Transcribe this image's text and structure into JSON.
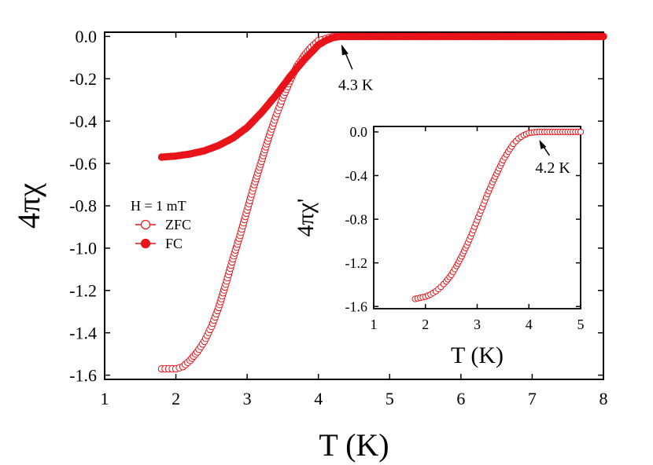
{
  "chart_data": [
    {
      "type": "scatter",
      "xlabel": "T (K)",
      "ylabel": "4πχ",
      "xlim": [
        1,
        8
      ],
      "ylim": [
        -1.62,
        0.02
      ],
      "xticks": [
        "1",
        "2",
        "3",
        "4",
        "5",
        "6",
        "7",
        "8"
      ],
      "yticks": [
        "0.0",
        "-0.2",
        "-0.4",
        "-0.6",
        "-0.8",
        "-1.0",
        "-1.2",
        "-1.4",
        "-1.6"
      ],
      "legend": {
        "placement": "middle-left",
        "title": "H = 1 mT"
      },
      "series": [
        {
          "name": "ZFC",
          "marker": "open-circle",
          "color": "#e8141a",
          "x": [
            1.8,
            1.9,
            2.0,
            2.1,
            2.2,
            2.3,
            2.4,
            2.5,
            2.6,
            2.7,
            2.8,
            2.9,
            3.0,
            3.1,
            3.2,
            3.3,
            3.4,
            3.5,
            3.6,
            3.7,
            3.8,
            3.9,
            4.0,
            4.1,
            4.2,
            4.3,
            4.4,
            4.6,
            5.0,
            5.5,
            6.0,
            6.5,
            7.0,
            7.5,
            8.0
          ],
          "y": [
            -1.57,
            -1.57,
            -1.57,
            -1.56,
            -1.53,
            -1.49,
            -1.44,
            -1.37,
            -1.28,
            -1.17,
            -1.05,
            -0.94,
            -0.82,
            -0.7,
            -0.59,
            -0.48,
            -0.38,
            -0.29,
            -0.21,
            -0.14,
            -0.09,
            -0.05,
            -0.02,
            -0.01,
            0.0,
            0.0,
            0.0,
            0.0,
            0.0,
            0.0,
            0.0,
            0.0,
            0.0,
            0.0,
            0.0
          ]
        },
        {
          "name": "FC",
          "marker": "filled-circle",
          "color": "#e8141a",
          "x": [
            1.8,
            2.0,
            2.2,
            2.4,
            2.6,
            2.8,
            3.0,
            3.2,
            3.4,
            3.6,
            3.8,
            4.0,
            4.1,
            4.2,
            4.3,
            4.4,
            4.6,
            5.0,
            5.5,
            6.0,
            6.5,
            7.0,
            7.5,
            8.0
          ],
          "y": [
            -0.57,
            -0.565,
            -0.555,
            -0.54,
            -0.515,
            -0.48,
            -0.43,
            -0.36,
            -0.28,
            -0.19,
            -0.11,
            -0.04,
            -0.02,
            -0.006,
            0.0,
            0.0,
            0.0,
            0.0,
            0.0,
            0.0,
            0.0,
            0.0,
            0.0,
            0.0
          ]
        }
      ],
      "annotations": [
        {
          "text": "4.3 K",
          "x": 4.3,
          "y": 0.0
        }
      ]
    },
    {
      "type": "scatter",
      "xlabel": "T (K)",
      "ylabel": "4πχ'",
      "xlim": [
        1,
        5
      ],
      "ylim": [
        -1.62,
        0.05
      ],
      "xticks": [
        "1",
        "2",
        "3",
        "4",
        "5"
      ],
      "yticks": [
        "0.0",
        "-0.4",
        "-0.8",
        "-1.2",
        "-1.6"
      ],
      "series": [
        {
          "name": "",
          "marker": "open-circle",
          "color": "#e8141a",
          "x": [
            1.8,
            1.9,
            2.0,
            2.1,
            2.2,
            2.3,
            2.4,
            2.5,
            2.6,
            2.7,
            2.8,
            2.9,
            3.0,
            3.1,
            3.2,
            3.3,
            3.4,
            3.5,
            3.6,
            3.7,
            3.8,
            3.9,
            4.0,
            4.1,
            4.2,
            4.3,
            4.4,
            4.5,
            4.6,
            4.7,
            4.8,
            4.9,
            5.0
          ],
          "y": [
            -1.53,
            -1.52,
            -1.51,
            -1.49,
            -1.46,
            -1.42,
            -1.37,
            -1.31,
            -1.23,
            -1.14,
            -1.04,
            -0.93,
            -0.81,
            -0.69,
            -0.57,
            -0.46,
            -0.36,
            -0.26,
            -0.18,
            -0.11,
            -0.06,
            -0.03,
            -0.01,
            -0.003,
            0.0,
            0.0,
            0.0,
            0.0,
            0.0,
            0.0,
            0.0,
            0.0,
            0.0
          ]
        }
      ],
      "annotations": [
        {
          "text": "4.2 K",
          "x": 4.2,
          "y": 0.0
        }
      ]
    }
  ]
}
